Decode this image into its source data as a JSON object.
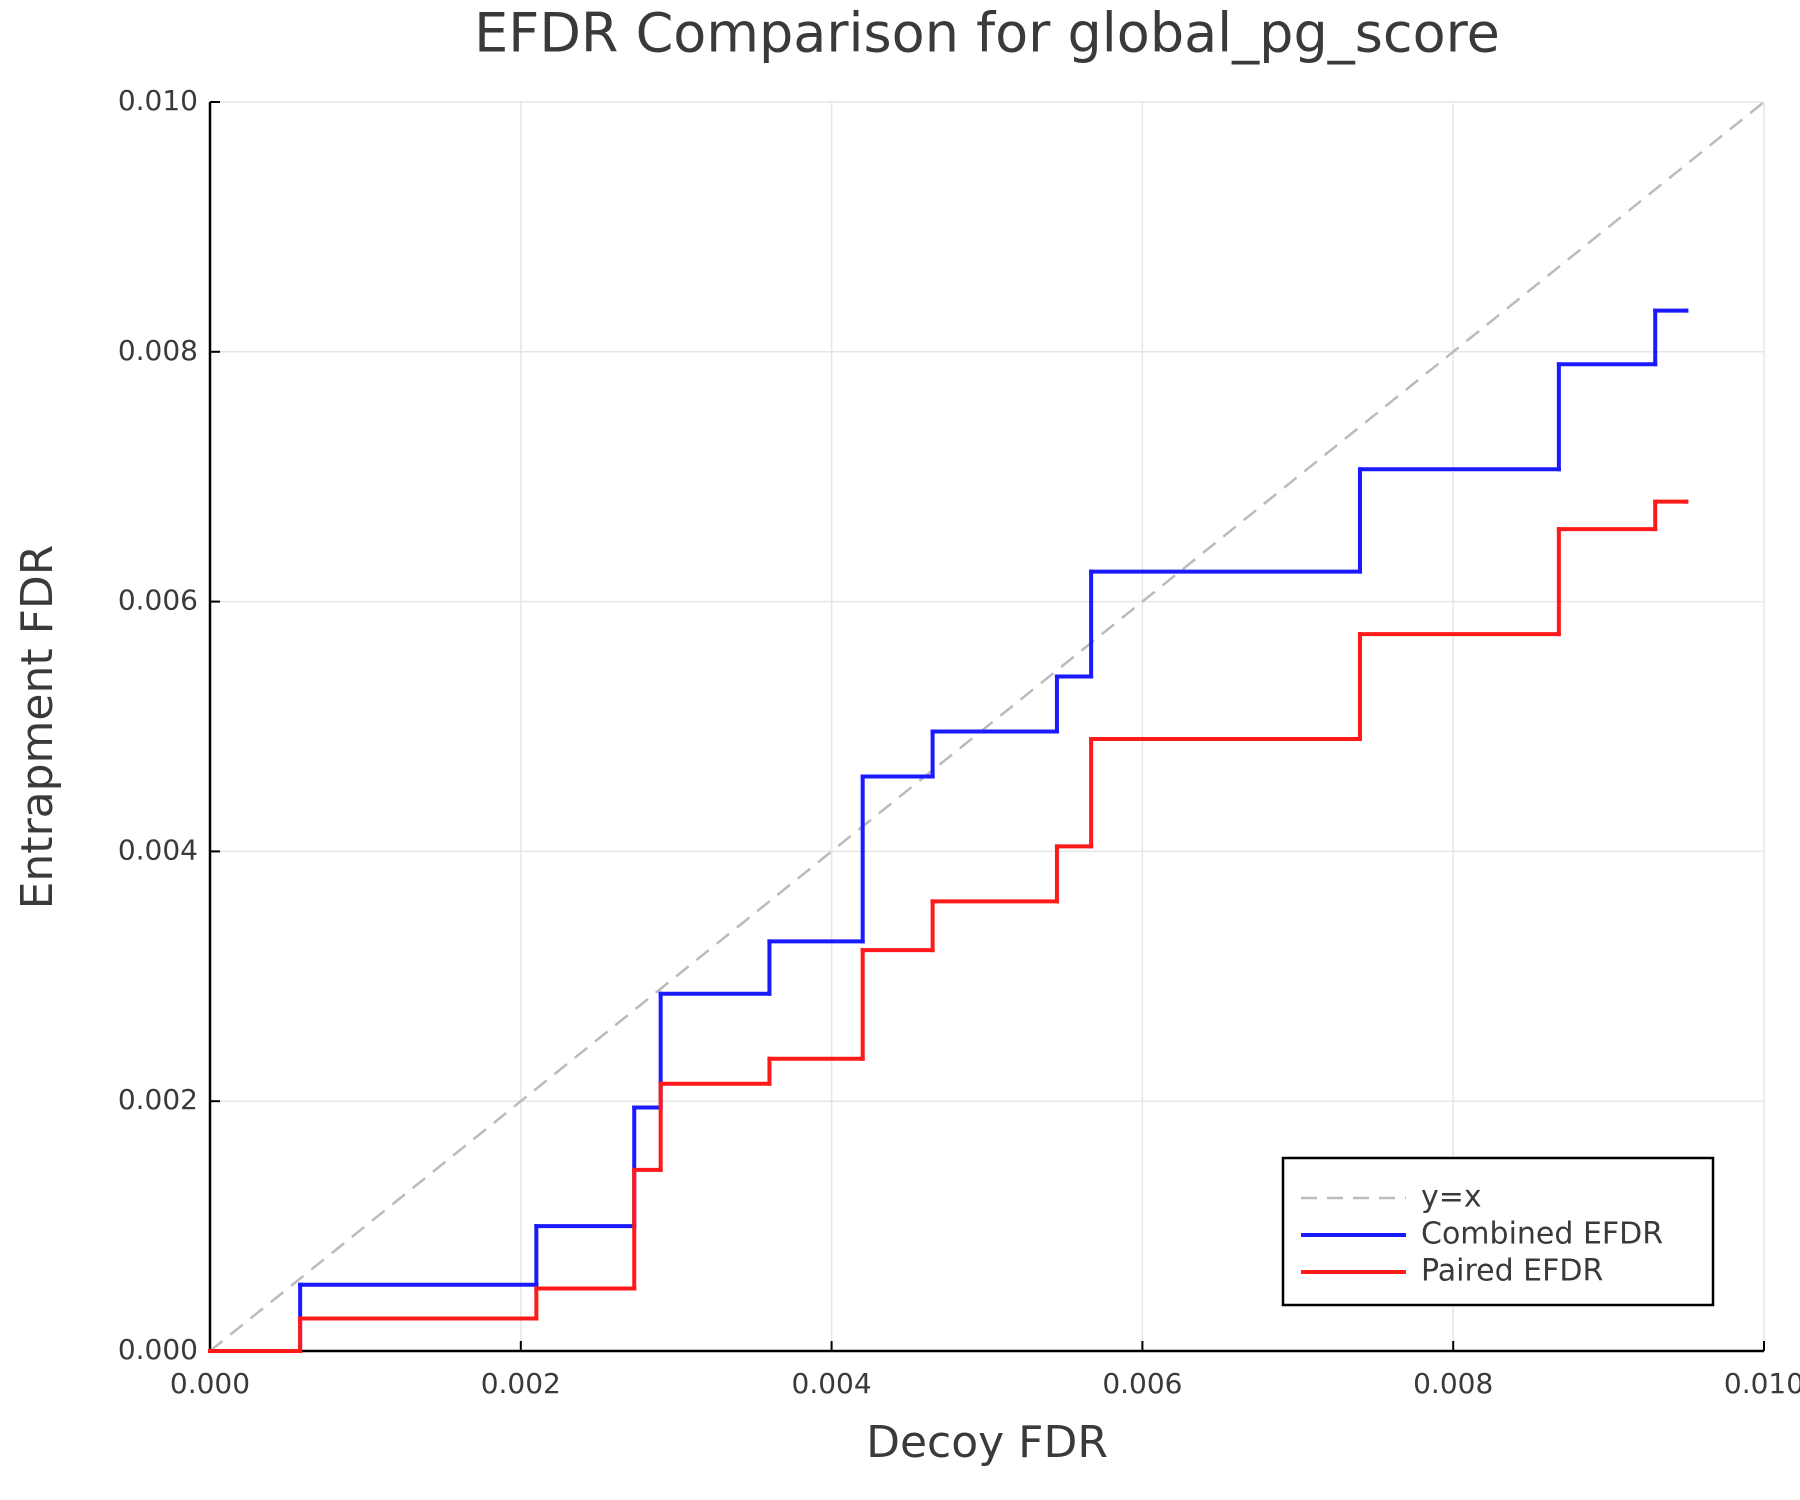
{
  "chart_data": {
    "type": "step",
    "title": "EFDR Comparison for global_pg_score",
    "x_label": "Decoy FDR",
    "y_label": "Entrapment FDR",
    "x": [
      0,
      0.00058,
      0.0021,
      0.00273,
      0.0029,
      0.0036,
      0.0042,
      0.00465,
      0.00545,
      0.00567,
      0.0074,
      0.00868,
      0.0093,
      0.0095
    ],
    "series": [
      {
        "name": "y=x",
        "color": "#bbbbbb",
        "dashed": true,
        "x": [
          0,
          0.01
        ],
        "values": [
          0,
          0.01
        ]
      },
      {
        "name": "Combined EFDR",
        "color": "#1a1aff",
        "values": [
          0,
          0.00053,
          0.001,
          0.00195,
          0.00286,
          0.00328,
          0.0046,
          0.00496,
          0.0054,
          0.00624,
          0.00706,
          0.0079,
          0.00833,
          0.00833
        ]
      },
      {
        "name": "Paired EFDR",
        "color": "#ff1a1a",
        "values": [
          0,
          0.00026,
          0.0005,
          0.00145,
          0.00214,
          0.00234,
          0.00321,
          0.0036,
          0.00404,
          0.0049,
          0.00574,
          0.00658,
          0.0068,
          0.0068
        ]
      }
    ],
    "xlim": [
      0,
      0.01
    ],
    "ylim": [
      0,
      0.01
    ],
    "xticks": [
      {
        "value": 0,
        "label": "0.000"
      },
      {
        "value": 0.002,
        "label": "0.002"
      },
      {
        "value": 0.004,
        "label": "0.004"
      },
      {
        "value": 0.006,
        "label": "0.006"
      },
      {
        "value": 0.008,
        "label": "0.008"
      },
      {
        "value": 0.01,
        "label": "0.010"
      }
    ],
    "yticks": [
      {
        "value": 0,
        "label": "0.000"
      },
      {
        "value": 0.002,
        "label": "0.002"
      },
      {
        "value": 0.004,
        "label": "0.004"
      },
      {
        "value": 0.006,
        "label": "0.006"
      },
      {
        "value": 0.008,
        "label": "0.008"
      },
      {
        "value": 0.01,
        "label": "0.010"
      }
    ],
    "grid": true,
    "legend": "lower right"
  }
}
